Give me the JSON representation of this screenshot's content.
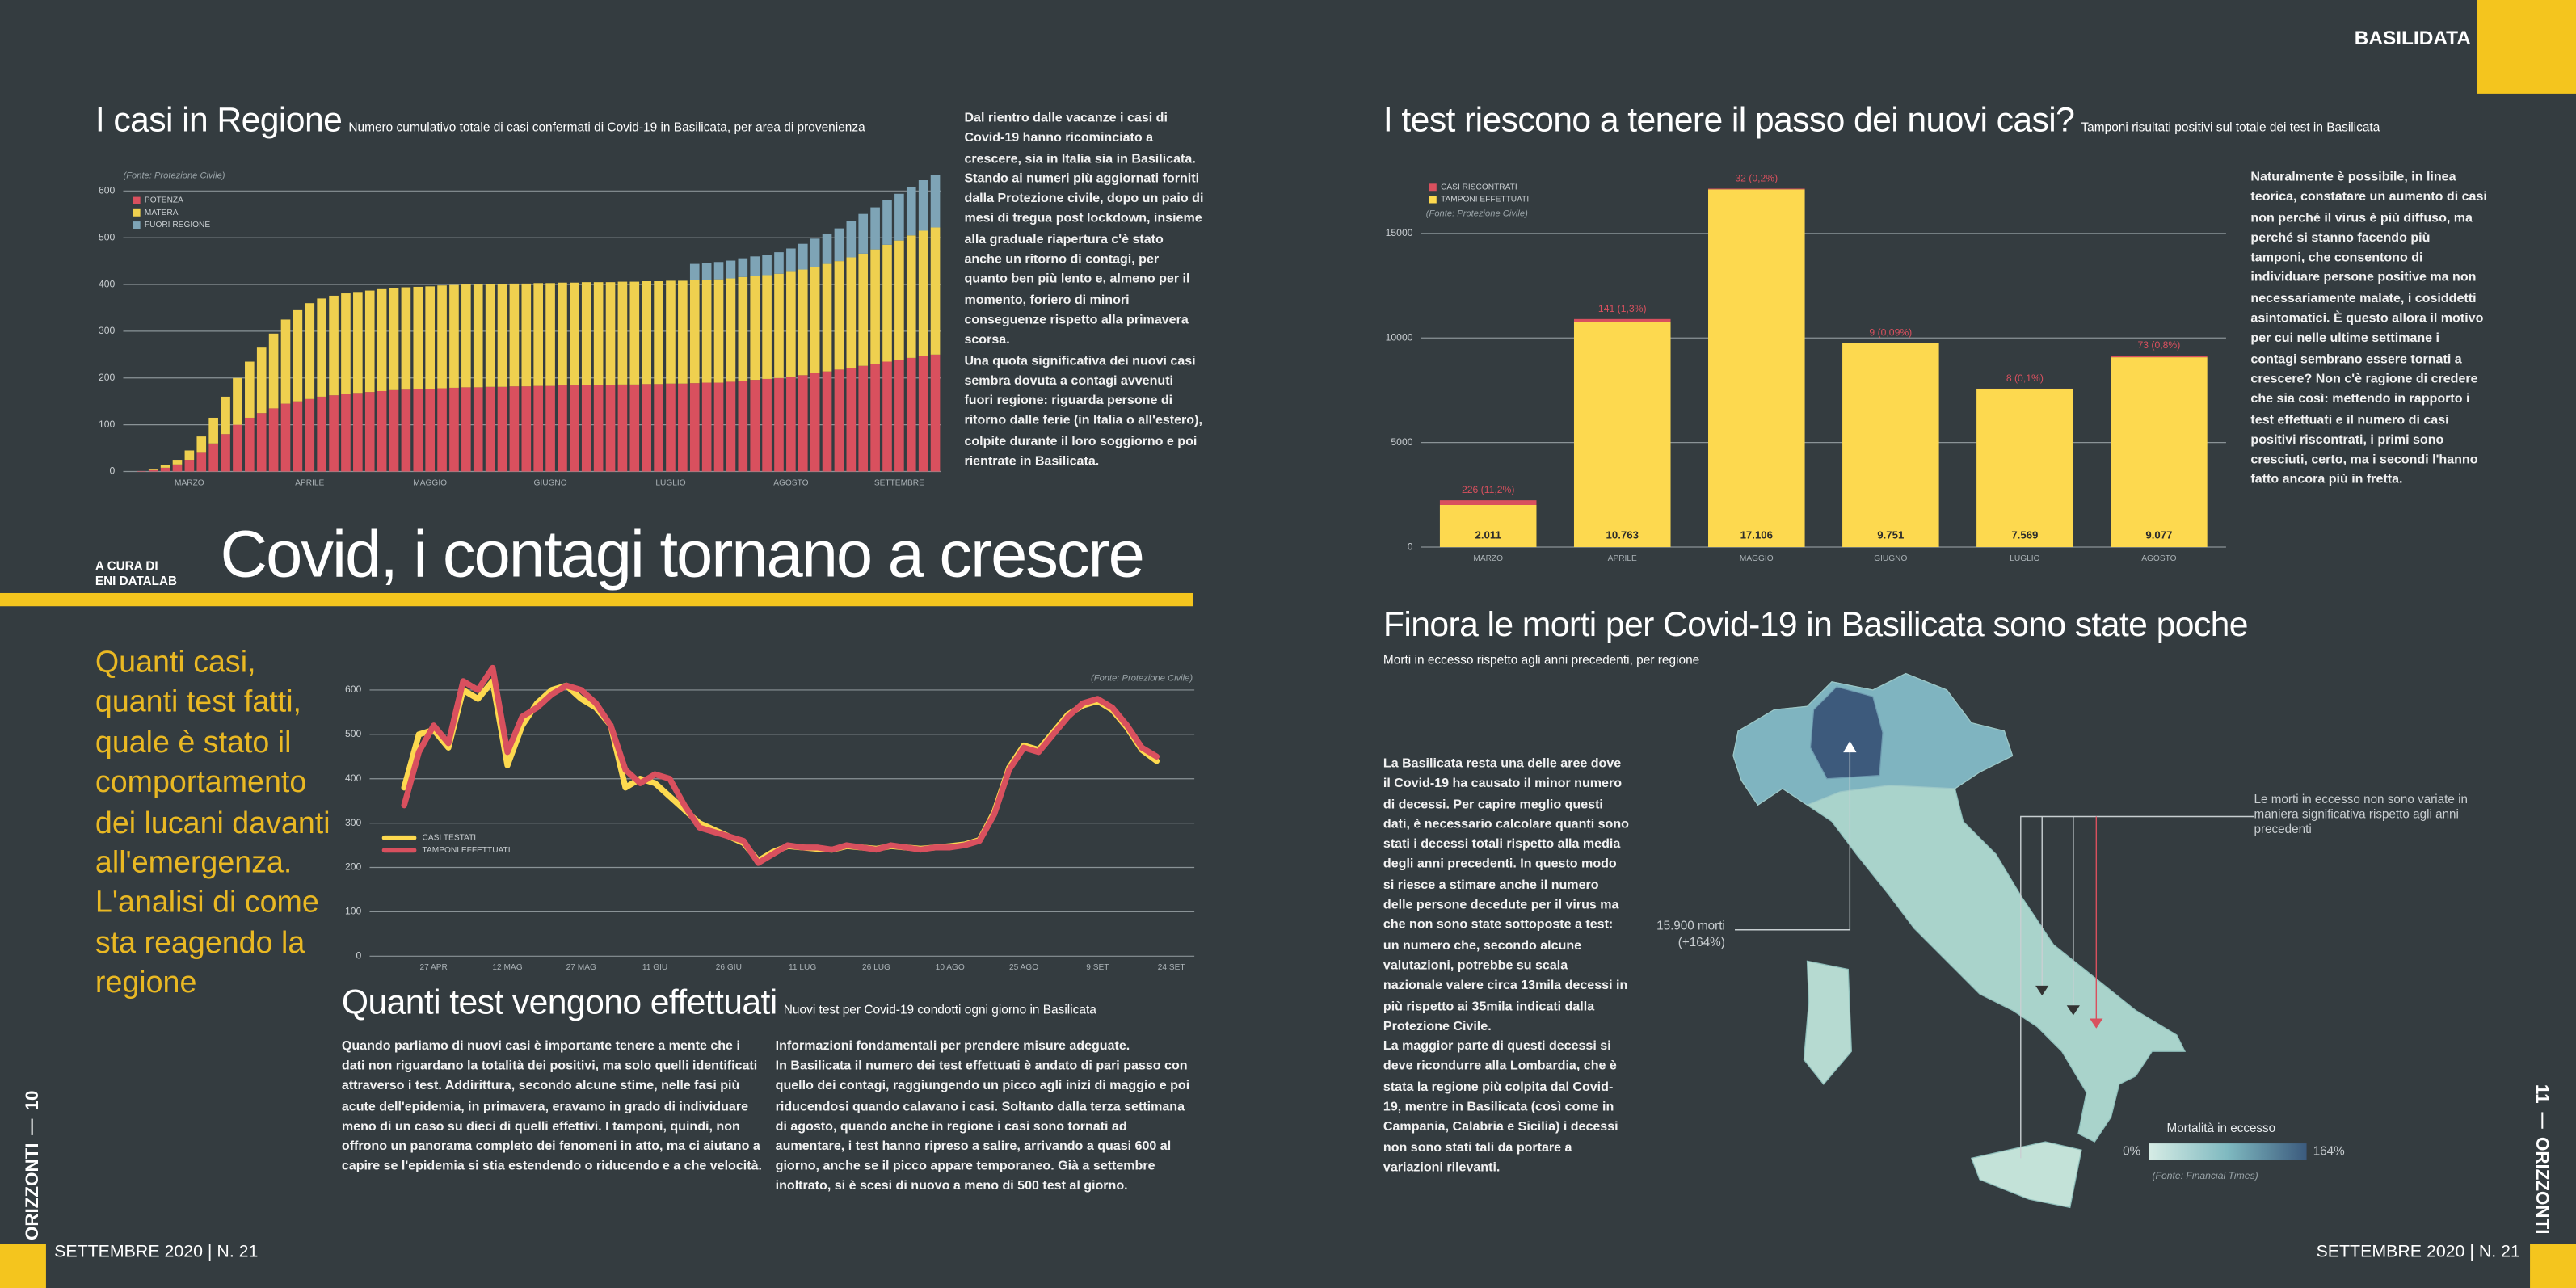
{
  "header": {
    "region": "BASILIDATA"
  },
  "left_page": {
    "cases_text": [
      "Dal rientro dalle vacanze i casi di Covid-19 hanno ricominciato a crescere, sia in Italia sia in Basilicata. Stando ai numeri più aggiornati forniti dalla Protezione civile, dopo un paio di mesi di tregua post lockdown, insieme alla graduale riapertura c'è stato anche un ritorno di contagi, per quanto ben più lento e, almeno per il momento, foriero di minori conseguenze rispetto alla primavera scorsa.",
      "Una quota significativa dei nuovi casi sembra dovuta a contagi avvenuti fuori regione: riguarda persone di ritorno dalle ferie (in Italia o all'estero), colpite durante il loro soggiorno e poi rientrate in Basilicata."
    ],
    "credit": [
      "A CURA DI",
      "ENI DATALAB"
    ],
    "headline": "Covid, i contagi tornano a crescre",
    "intro": "Quanti casi, quanti test fatti, quale è stato il comportamento dei lucani davanti all'emergenza. L'analisi di come sta reagendo la regione",
    "tests_text_1": "Quando parliamo di nuovi casi è importante tenere a mente che i dati non riguardano la totalità dei positivi, ma solo quelli identificati attraverso i test. Addirittura, secondo alcune stime, nelle fasi più acute dell'epidemia, in primavera, eravamo in grado di individuare meno di un caso su dieci di quelli effettivi. I tamponi, quindi, non offrono un panorama completo dei fenomeni in atto, ma ci aiutano a capire se l'epidemia si stia estendendo o riducendo e a che velocità.",
    "tests_text_2": [
      "Informazioni fondamentali per prendere misure adeguate.",
      "In Basilicata il numero dei test effettuati è andato di pari passo con quello dei contagi, raggiungendo un picco agli inizi di maggio e poi riducendosi quando calavano i casi. Soltanto dalla terza settimana di agosto, quando anche in regione i casi sono tornati ad aumentare, i test hanno ripreso a salire, arrivando a quasi 600 al giorno, anche se il picco appare temporaneo. Già a settembre inoltrato, si è scesi di nuovo a meno di 500 test al giorno."
    ]
  },
  "right_page": {
    "tests_text": "Naturalmente è possibile, in linea teorica, constatare un aumento di casi non perché il virus è più diffuso, ma perché si stanno facendo più tamponi, che consentono di individuare persone positive ma non necessariamente malate, i cosiddetti asintomatici. È questo allora il motivo per cui nelle ultime settimane i contagi sembrano essere tornati a crescere? Non c'è ragione di credere che sia così: mettendo in rapporto i test effettuati e il numero di casi positivi riscontrati, i primi sono cresciuti, certo, ma i secondi l'hanno fatto ancora più in fretta.",
    "deaths_title": "Finora le morti per Covid-19 in Basilicata sono state poche",
    "deaths_subtitle": "Morti in eccesso rispetto agli anni precedenti, per regione",
    "deaths_text": [
      "La Basilicata resta una delle aree dove il Covid-19 ha causato il minor numero di decessi. Per capire meglio questi dati, è necessario calcolare quanti sono stati i decessi totali rispetto alla media degli anni precedenti. In questo modo si riesce a stimare anche il numero delle persone decedute per il virus ma che non sono state sottoposte a test: un numero che, secondo alcune valutazioni, potrebbe su scala nazionale valere circa 13mila decessi in più rispetto ai 35mila indicati dalla Protezione Civile.",
      "La maggior parte di questi decessi si deve ricondurre alla Lombardia, che è stata la regione più colpita dal Covid-19, mentre in Basilicata (così come in Campania, Calabria e Sicilia) i decessi non sono stati tali da portare a variazioni rilevanti."
    ],
    "map": {
      "lombardy_note": [
        "15.900 morti",
        "(+164%)"
      ],
      "south_note": "Le morti in eccesso non sono variate in maniera significativa rispetto agli anni precedenti",
      "scale_title": "Mortalità in eccesso",
      "scale_min": "0%",
      "scale_max": "164%",
      "source": "(Fonte: Financial Times)"
    }
  },
  "footer": {
    "left_issue": "SETTEMBRE 2020 | N. 21",
    "right_issue": "SETTEMBRE 2020 | N. 21",
    "magazine": "ORIZZONTI",
    "left_page_number": "10",
    "right_page_number": "11"
  },
  "chart_data": [
    {
      "type": "bar",
      "stacked": true,
      "title": "I casi in Regione",
      "subtitle": "Numero cumulativo totale di casi confermati di Covid-19 in Basilicata, per area di provenienza",
      "source": "(Fonte: Protezione Civile)",
      "categories": [
        null,
        null,
        null,
        null,
        null,
        "MARZO",
        null,
        null,
        null,
        null,
        null,
        null,
        null,
        null,
        null,
        "APRILE",
        null,
        null,
        null,
        null,
        null,
        null,
        null,
        null,
        null,
        "MAGGIO",
        null,
        null,
        null,
        null,
        null,
        null,
        null,
        null,
        null,
        "GIUGNO",
        null,
        null,
        null,
        null,
        null,
        null,
        null,
        null,
        null,
        "LUGLIO",
        null,
        null,
        null,
        null,
        null,
        null,
        null,
        null,
        null,
        "AGOSTO",
        null,
        null,
        null,
        null,
        null,
        null,
        null,
        null,
        "SETTEMBRE",
        null,
        null,
        null
      ],
      "series": [
        {
          "name": "POTENZA",
          "color": "#d9505e",
          "values": [
            0,
            1,
            3,
            8,
            15,
            25,
            40,
            60,
            80,
            100,
            115,
            125,
            135,
            145,
            150,
            155,
            160,
            163,
            166,
            168,
            170,
            172,
            174,
            175,
            176,
            177,
            178,
            179,
            180,
            180,
            181,
            181,
            182,
            182,
            183,
            183,
            184,
            184,
            185,
            185,
            185,
            186,
            186,
            187,
            187,
            188,
            188,
            189,
            190,
            190,
            192,
            194,
            196,
            198,
            200,
            203,
            206,
            210,
            214,
            218,
            222,
            226,
            230,
            235,
            239,
            243,
            247,
            250
          ]
        },
        {
          "name": "MATERA",
          "color": "#efd04f",
          "values": [
            0,
            0,
            2,
            5,
            10,
            20,
            35,
            55,
            80,
            100,
            120,
            140,
            160,
            180,
            195,
            205,
            210,
            213,
            215,
            216,
            217,
            218,
            218,
            219,
            219,
            219,
            220,
            220,
            220,
            220,
            220,
            220,
            220,
            220,
            220,
            220,
            220,
            220,
            220,
            220,
            220,
            220,
            220,
            220,
            220,
            220,
            220,
            220,
            220,
            221,
            221,
            222,
            222,
            222,
            223,
            224,
            226,
            228,
            230,
            232,
            236,
            240,
            245,
            250,
            255,
            262,
            268,
            272
          ]
        },
        {
          "name": "FUORI REGIONE",
          "color": "#7ea4b6",
          "values": [
            0,
            0,
            0,
            0,
            0,
            0,
            0,
            0,
            0,
            0,
            0,
            0,
            0,
            0,
            0,
            0,
            0,
            0,
            0,
            0,
            0,
            0,
            0,
            0,
            0,
            0,
            0,
            0,
            0,
            0,
            0,
            0,
            0,
            0,
            0,
            0,
            0,
            0,
            0,
            0,
            0,
            0,
            0,
            0,
            0,
            0,
            0,
            35,
            36,
            37,
            38,
            40,
            42,
            44,
            46,
            50,
            55,
            60,
            65,
            70,
            78,
            85,
            90,
            95,
            100,
            104,
            108,
            112
          ]
        }
      ],
      "ylim": [
        0,
        650
      ],
      "yticks": [
        0,
        100,
        200,
        300,
        400,
        500,
        600
      ],
      "grid": true
    },
    {
      "type": "bar",
      "stacked": true,
      "title": "I test riescono a tenere il passo dei nuovi casi?",
      "subtitle": "Tamponi risultati positivi sul totale dei test in Basilicata",
      "source": "(Fonte: Protezione Civile)",
      "categories": [
        "MARZO",
        "APRILE",
        "MAGGIO",
        "GIUGNO",
        "LUGLIO",
        "AGOSTO"
      ],
      "series": [
        {
          "name": "TAMPONI EFFETTUATI",
          "color": "#fdd94f",
          "values": [
            2011,
            10763,
            17106,
            9751,
            7569,
            9077
          ],
          "value_labels": [
            "2.011",
            "10.763",
            "17.106",
            "9.751",
            "7.569",
            "9.077"
          ]
        },
        {
          "name": "CASI RISCONTRATI",
          "color": "#d9505e",
          "values": [
            226,
            141,
            32,
            9,
            8,
            73
          ],
          "value_labels": [
            "226 (11,2%)",
            "141 (1,3%)",
            "32 (0,2%)",
            "9 (0,09%)",
            "8 (0,1%)",
            "73 (0,8%)"
          ]
        }
      ],
      "ylim": [
        0,
        18500
      ],
      "yticks": [
        0,
        5000,
        10000,
        15000
      ],
      "grid": true
    },
    {
      "type": "line",
      "title": "Quanti test vengono effettuati",
      "subtitle": "Nuovi test per Covid-19 condotti ogni giorno in Basilicata",
      "source": "(Fonte: Protezione Civile)",
      "categories": [
        null,
        null,
        "27 APR",
        null,
        null,
        null,
        null,
        "12 MAG",
        null,
        null,
        null,
        null,
        "27 MAG",
        null,
        null,
        null,
        null,
        "11 GIU",
        null,
        null,
        null,
        null,
        "26 GIU",
        null,
        null,
        null,
        null,
        "11 LUG",
        null,
        null,
        null,
        null,
        "26 LUG",
        null,
        null,
        null,
        null,
        "10 AGO",
        null,
        null,
        null,
        null,
        "25 AGO",
        null,
        null,
        null,
        null,
        "9 SET",
        null,
        null,
        null,
        null,
        "24 SET"
      ],
      "series": [
        {
          "name": "CASI TESTATI",
          "color": "#fdd94f",
          "values": [
            380,
            500,
            510,
            470,
            600,
            580,
            620,
            430,
            520,
            570,
            600,
            610,
            580,
            560,
            520,
            380,
            400,
            390,
            360,
            330,
            300,
            285,
            270,
            255,
            215,
            235,
            248,
            245,
            242,
            240,
            248,
            245,
            242,
            248,
            245,
            242,
            245,
            248,
            252,
            262,
            325,
            425,
            475,
            465,
            505,
            545,
            565,
            575,
            555,
            515,
            465,
            440,
            null
          ]
        },
        {
          "name": "TAMPONI EFFETTUATI",
          "color": "#d9505e",
          "values": [
            340,
            460,
            520,
            480,
            620,
            600,
            650,
            460,
            540,
            560,
            590,
            610,
            600,
            570,
            520,
            420,
            390,
            410,
            400,
            340,
            290,
            280,
            270,
            260,
            210,
            230,
            250,
            245,
            245,
            240,
            250,
            245,
            240,
            250,
            245,
            240,
            245,
            245,
            250,
            260,
            320,
            420,
            470,
            460,
            500,
            540,
            570,
            580,
            560,
            520,
            470,
            450,
            null
          ]
        }
      ],
      "ylim": [
        0,
        680
      ],
      "yticks": [
        0,
        100,
        200,
        300,
        400,
        500,
        600
      ],
      "grid": true
    }
  ]
}
